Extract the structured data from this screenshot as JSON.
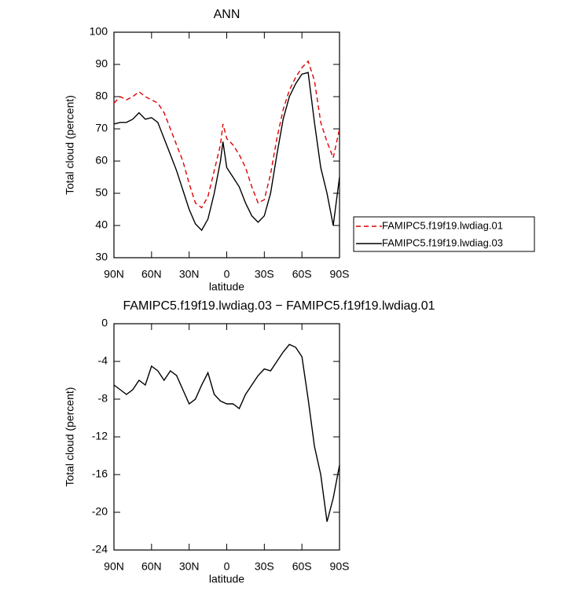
{
  "chart_data": [
    {
      "type": "line",
      "title": "ANN",
      "xlabel": "latitude",
      "ylabel": "Total cloud (percent)",
      "x": [
        90,
        85,
        80,
        75,
        70,
        65,
        60,
        55,
        50,
        45,
        40,
        35,
        30,
        25,
        20,
        15,
        10,
        5,
        3,
        0,
        -5,
        -10,
        -15,
        -20,
        -25,
        -30,
        -35,
        -40,
        -45,
        -50,
        -55,
        -60,
        -65,
        -70,
        -75,
        -80,
        -85,
        -90
      ],
      "series": [
        {
          "name": "FAMIPC5.f19f19.lwdiag.01",
          "color": "#e00000",
          "linestyle": "dashed",
          "values": [
            78,
            80,
            79,
            80,
            81.5,
            80,
            79,
            78,
            75,
            70,
            65,
            60,
            53,
            47,
            45.5,
            49,
            57,
            65,
            71.5,
            67,
            65,
            62,
            58,
            52,
            47,
            48,
            56,
            67,
            76,
            82,
            86,
            89,
            91,
            85,
            72,
            66,
            61,
            70
          ]
        },
        {
          "name": "FAMIPC5.f19f19.lwdiag.03",
          "color": "#000000",
          "linestyle": "solid",
          "values": [
            71.5,
            72,
            72,
            73,
            75,
            73,
            73.5,
            72,
            67,
            62,
            57,
            51,
            45,
            40.5,
            38.5,
            42,
            50,
            60,
            66,
            58,
            55,
            52,
            47,
            43,
            41,
            43,
            50,
            62,
            73,
            80,
            84,
            87,
            87.5,
            72,
            58,
            50,
            40,
            55
          ]
        }
      ],
      "xlim": [
        90,
        -90
      ],
      "xticks": [
        {
          "value": 90,
          "label": "90N"
        },
        {
          "value": 60,
          "label": "60N"
        },
        {
          "value": 30,
          "label": "30N"
        },
        0,
        {
          "value": -30,
          "label": "30S"
        },
        {
          "value": -60,
          "label": "60S"
        },
        {
          "value": -90,
          "label": "90S"
        }
      ],
      "ylim": [
        30,
        100
      ],
      "yticks": [
        30,
        40,
        50,
        60,
        70,
        80,
        90,
        100
      ],
      "legend": "right"
    },
    {
      "type": "line",
      "title": "FAMIPC5.f19f19.lwdiag.03 − FAMIPC5.f19f19.lwdiag.01",
      "xlabel": "latitude",
      "ylabel": "Total cloud (percent)",
      "x": [
        90,
        85,
        80,
        75,
        70,
        65,
        60,
        55,
        50,
        45,
        40,
        35,
        30,
        25,
        20,
        15,
        10,
        5,
        0,
        -5,
        -10,
        -15,
        -20,
        -25,
        -30,
        -35,
        -40,
        -45,
        -50,
        -55,
        -60,
        -65,
        -70,
        -75,
        -80,
        -85,
        -90
      ],
      "series": [
        {
          "color": "#000000",
          "linestyle": "solid",
          "values": [
            -6.5,
            -7,
            -7.5,
            -7,
            -6,
            -6.5,
            -4.5,
            -5,
            -6,
            -5,
            -5.5,
            -7,
            -8.5,
            -8,
            -6.5,
            -5.2,
            -7.5,
            -8.2,
            -8.5,
            -8.5,
            -9,
            -7.5,
            -6.5,
            -5.5,
            -4.8,
            -5,
            -4,
            -3,
            -2.2,
            -2.5,
            -3.5,
            -8,
            -13,
            -16,
            -21,
            -18.5,
            -15
          ]
        }
      ],
      "xlim": [
        90,
        -90
      ],
      "xticks": [
        {
          "value": 90,
          "label": "90N"
        },
        {
          "value": 60,
          "label": "60N"
        },
        {
          "value": 30,
          "label": "30N"
        },
        0,
        {
          "value": -30,
          "label": "30S"
        },
        {
          "value": -60,
          "label": "60S"
        },
        {
          "value": -90,
          "label": "90S"
        }
      ],
      "ylim": [
        -24,
        0
      ],
      "yticks": [
        -24,
        -20,
        -16,
        -12,
        -8,
        -4,
        0
      ]
    }
  ]
}
